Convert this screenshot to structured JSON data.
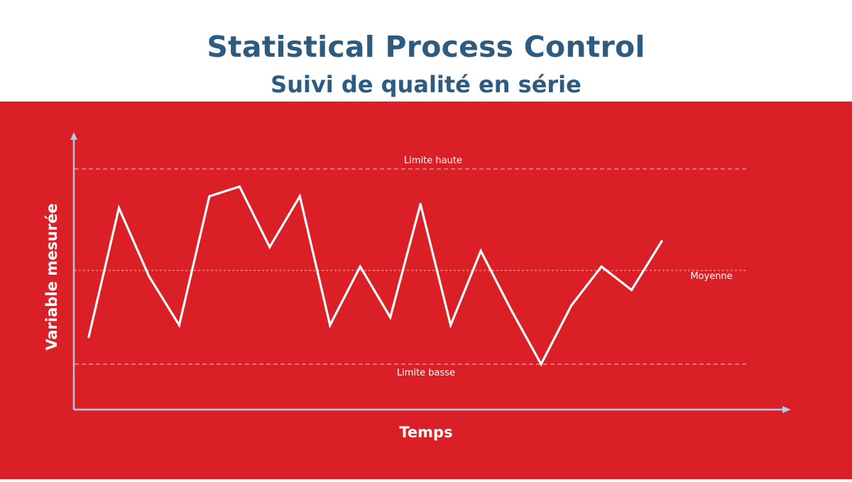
{
  "colors": {
    "title": "#2e5b80",
    "panel": "#da1f26",
    "axis": "#b9c7e4",
    "line": "#ffffff",
    "reference_lines": "#f2c6c8"
  },
  "chart_data": {
    "type": "line",
    "title": "Statistical Process Control",
    "subtitle": "Suivi de qualité en série",
    "xlabel": "Temps",
    "ylabel": "Variable mesurée",
    "ylim": [
      0,
      100
    ],
    "grid": false,
    "ticks": false,
    "x": [
      1,
      2,
      3,
      4,
      5,
      6,
      7,
      8,
      9,
      10,
      11,
      12,
      13,
      14,
      15,
      16,
      17,
      18,
      19,
      20
    ],
    "series": [
      {
        "values": [
          14,
          80,
          45,
          20,
          86,
          91,
          60,
          86,
          20,
          50,
          24,
          82,
          20,
          58,
          28,
          0,
          30,
          50,
          38,
          63
        ]
      }
    ],
    "reference_lines": [
      {
        "label": "Limite haute",
        "value": 100
      },
      {
        "label": "Moyenne",
        "value": 48
      },
      {
        "label": "Limite basse",
        "value": 0
      }
    ]
  }
}
